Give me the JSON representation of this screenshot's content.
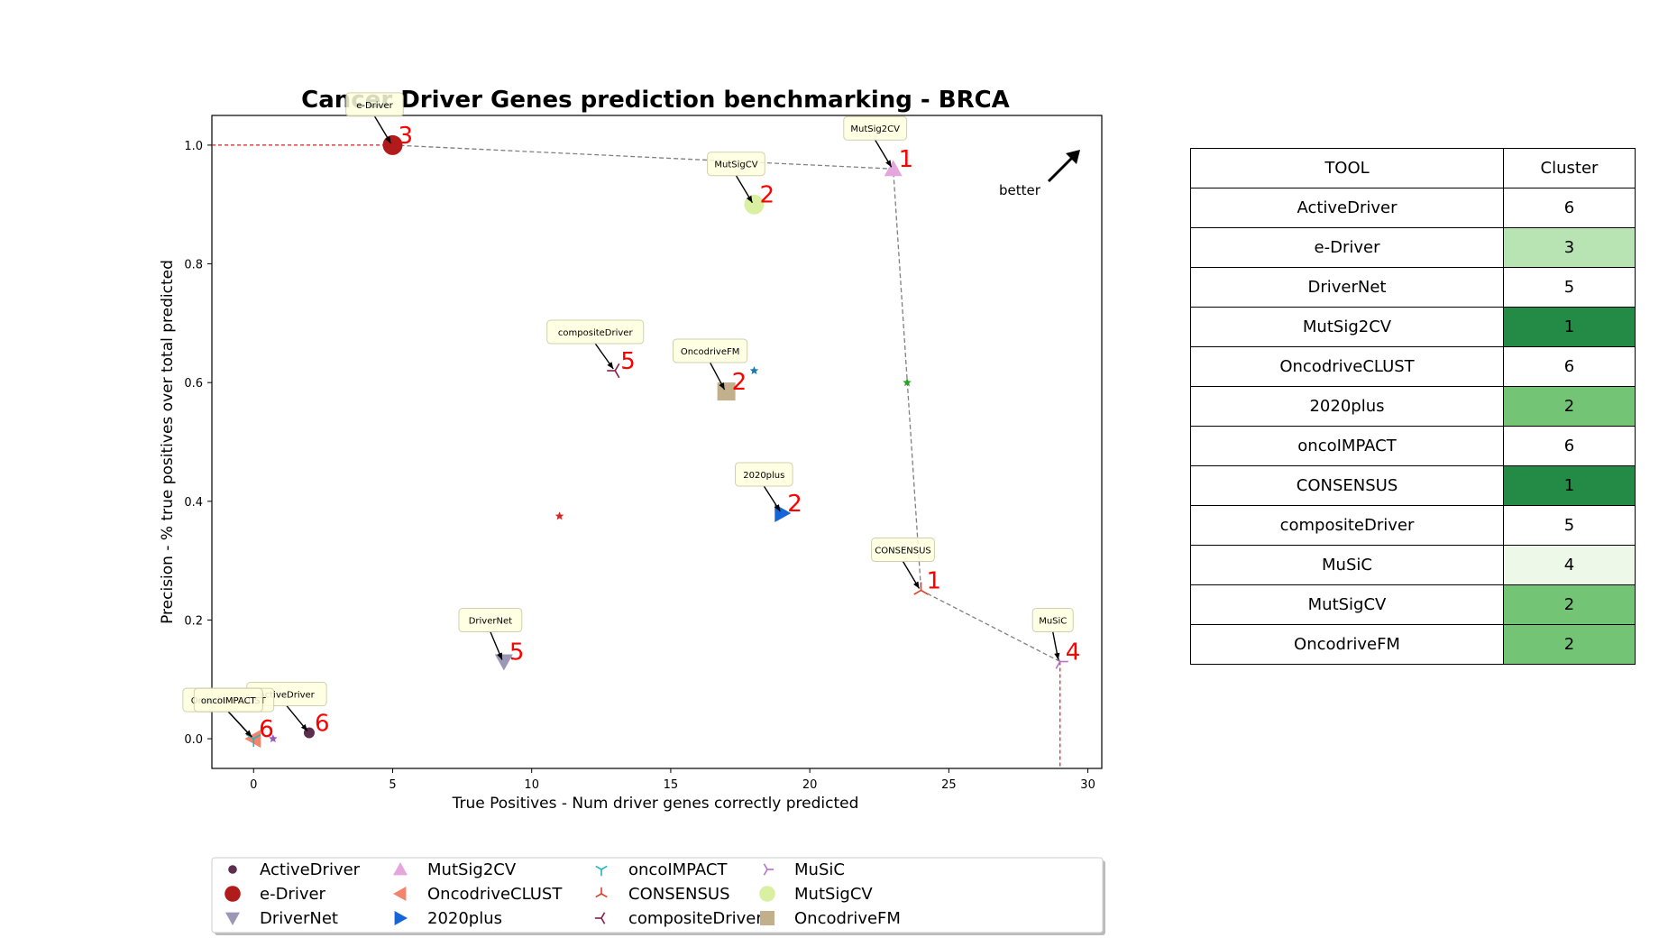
{
  "chart_data": {
    "type": "scatter",
    "title": "Cancer Driver Genes prediction benchmarking - BRCA",
    "xlabel": "True Positives - Num driver genes correctly predicted",
    "ylabel": "Precision - % true positives over total predicted",
    "xlim": [
      -1.5,
      30.5
    ],
    "ylim": [
      -0.05,
      1.05
    ],
    "xticks": [
      0,
      5,
      10,
      15,
      20,
      25,
      30
    ],
    "yticks": [
      0.0,
      0.2,
      0.4,
      0.6,
      0.8,
      1.0
    ],
    "grid": false,
    "legend_position": "bottom",
    "better_label": "better",
    "series": [
      {
        "name": "ActiveDriver",
        "x": 2,
        "y": 0.01,
        "rank": "6",
        "marker": "circle-small",
        "color": "#5c2d4d"
      },
      {
        "name": "e-Driver",
        "x": 5,
        "y": 1.0,
        "rank": "3",
        "marker": "circle",
        "color": "#b11b1b"
      },
      {
        "name": "DriverNet",
        "x": 9,
        "y": 0.13,
        "rank": "5",
        "marker": "triangle-down",
        "color": "#9a98b6"
      },
      {
        "name": "MutSig2CV",
        "x": 23,
        "y": 0.96,
        "rank": "1",
        "marker": "triangle-up",
        "color": "#e4a6dc"
      },
      {
        "name": "OncodriveCLUST",
        "x": 0,
        "y": 0.0,
        "rank": "6",
        "marker": "triangle-left",
        "color": "#f4836b"
      },
      {
        "name": "2020plus",
        "x": 19,
        "y": 0.38,
        "rank": "2",
        "marker": "triangle-right",
        "color": "#1565d8"
      },
      {
        "name": "oncoIMPACT",
        "x": 0,
        "y": 0.0,
        "rank": "6",
        "marker": "tri-down",
        "color": "#23b5c2"
      },
      {
        "name": "CONSENSUS",
        "x": 24,
        "y": 0.25,
        "rank": "1",
        "marker": "tri-up",
        "color": "#e0412b"
      },
      {
        "name": "compositeDriver",
        "x": 13,
        "y": 0.62,
        "rank": "5",
        "marker": "tri-left",
        "color": "#8b1a4a"
      },
      {
        "name": "MuSiC",
        "x": 29,
        "y": 0.13,
        "rank": "4",
        "marker": "tri-right",
        "color": "#b473c9"
      },
      {
        "name": "MutSigCV",
        "x": 18,
        "y": 0.9,
        "rank": "2",
        "marker": "circle-large",
        "color": "#d9f0a3"
      },
      {
        "name": "OncodriveFM",
        "x": 17,
        "y": 0.585,
        "rank": "2",
        "marker": "square",
        "color": "#c2b08c"
      }
    ],
    "centroids": [
      {
        "x": 0.7,
        "y": 0.0,
        "color": "#9b59b6"
      },
      {
        "x": 11,
        "y": 0.375,
        "color": "#d62728"
      },
      {
        "x": 18,
        "y": 0.62,
        "color": "#1f77b4"
      },
      {
        "x": 23.5,
        "y": 0.6,
        "color": "#2ca02c"
      }
    ],
    "pareto_frontier": [
      [
        5,
        1.0
      ],
      [
        23,
        0.96
      ],
      [
        24,
        0.25
      ],
      [
        29,
        0.13
      ]
    ]
  },
  "table": {
    "headers": [
      "TOOL",
      "Cluster"
    ],
    "rows": [
      {
        "tool": "ActiveDriver",
        "cluster": "6",
        "color": "#ffffff"
      },
      {
        "tool": "e-Driver",
        "cluster": "3",
        "color": "#b8e3b2"
      },
      {
        "tool": "DriverNet",
        "cluster": "5",
        "color": "#ffffff"
      },
      {
        "tool": "MutSig2CV",
        "cluster": "1",
        "color": "#238b45"
      },
      {
        "tool": "OncodriveCLUST",
        "cluster": "6",
        "color": "#ffffff"
      },
      {
        "tool": "2020plus",
        "cluster": "2",
        "color": "#74c476"
      },
      {
        "tool": "oncoIMPACT",
        "cluster": "6",
        "color": "#ffffff"
      },
      {
        "tool": "CONSENSUS",
        "cluster": "1",
        "color": "#238b45"
      },
      {
        "tool": "compositeDriver",
        "cluster": "5",
        "color": "#ffffff"
      },
      {
        "tool": "MuSiC",
        "cluster": "4",
        "color": "#edf8e9"
      },
      {
        "tool": "MutSigCV",
        "cluster": "2",
        "color": "#74c476"
      },
      {
        "tool": "OncodriveFM",
        "cluster": "2",
        "color": "#74c476"
      }
    ]
  }
}
